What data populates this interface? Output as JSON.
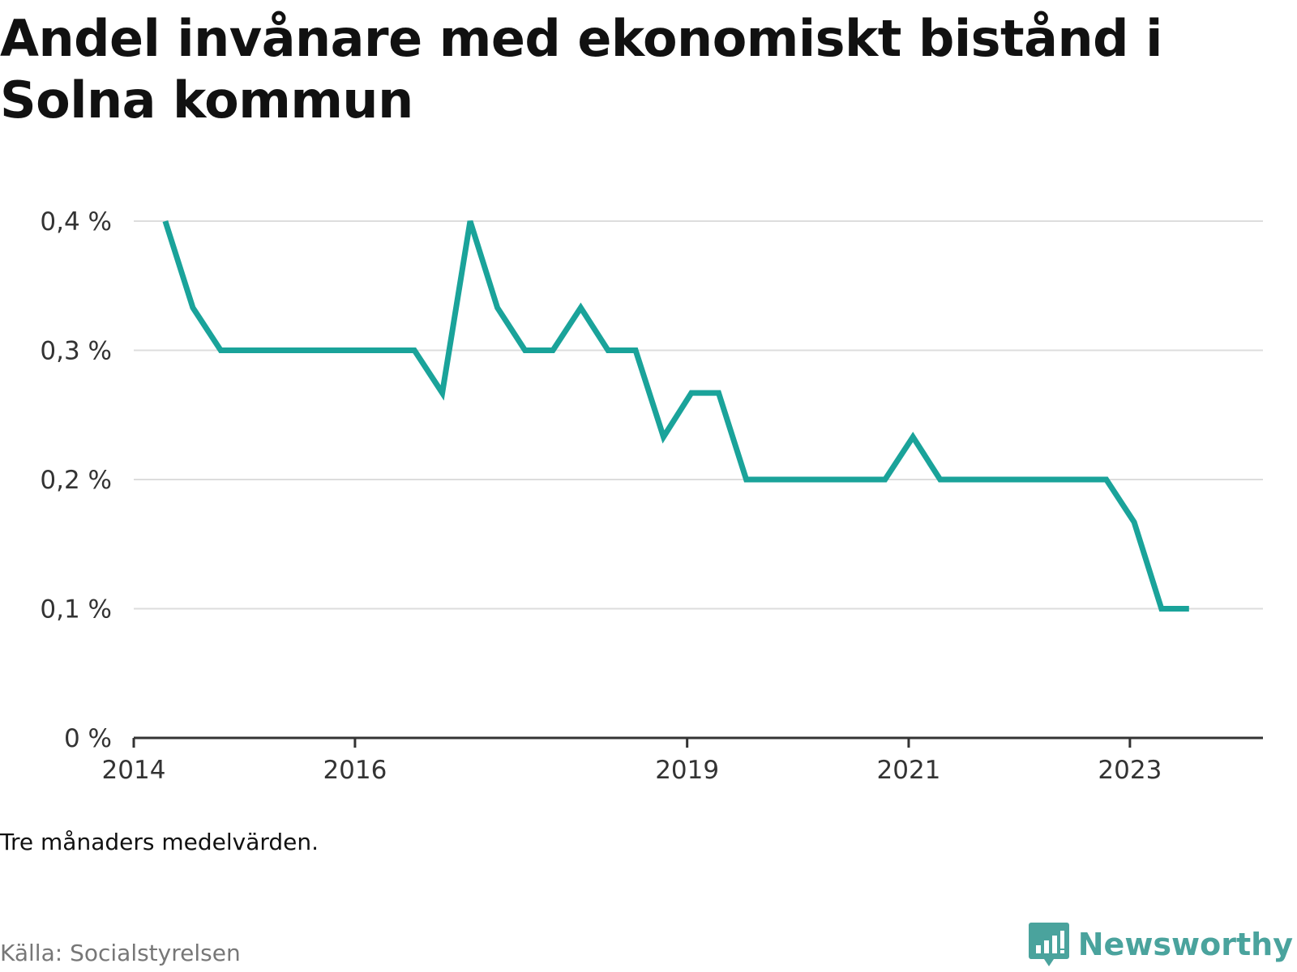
{
  "title": "Andel invånare med ekonomiskt bistånd i Solna kommun",
  "note": "Tre månaders medelvärden.",
  "source": "Källa: Socialstyrelsen",
  "brand": "Newsworthy",
  "colors": {
    "line": "#1aa39a",
    "grid": "#dddddd",
    "axis": "#333333",
    "brand": "#4aa39d"
  },
  "chart_data": {
    "type": "line",
    "title": "Andel invånare med ekonomiskt bistånd i Solna kommun",
    "xlabel": "",
    "ylabel": "",
    "ylim": [
      0,
      0.4
    ],
    "yticks": [
      {
        "value": 0,
        "label": "0 %"
      },
      {
        "value": 0.1,
        "label": "0,1 %"
      },
      {
        "value": 0.2,
        "label": "0,2 %"
      },
      {
        "value": 0.3,
        "label": "0,3 %"
      },
      {
        "value": 0.4,
        "label": "0,4 %"
      }
    ],
    "xlim": [
      "2014-01-01",
      "2024-03-15"
    ],
    "xticks": [
      {
        "value": "2014-01-01",
        "label": "2014"
      },
      {
        "value": "2016-01-01",
        "label": "2016"
      },
      {
        "value": "2019-01-01",
        "label": "2019"
      },
      {
        "value": "2021-01-01",
        "label": "2021"
      },
      {
        "value": "2023-01-01",
        "label": "2023"
      }
    ],
    "grid": true,
    "series": [
      {
        "values": [
          [
            "2014-04-15",
            0.4
          ],
          [
            "2014-07-15",
            0.333
          ],
          [
            "2014-10-15",
            0.3
          ],
          [
            "2015-01-15",
            0.3
          ],
          [
            "2015-04-15",
            0.3
          ],
          [
            "2015-07-15",
            0.3
          ],
          [
            "2015-10-15",
            0.3
          ],
          [
            "2016-01-15",
            0.3
          ],
          [
            "2016-04-15",
            0.3
          ],
          [
            "2016-07-15",
            0.3
          ],
          [
            "2016-10-15",
            0.267
          ],
          [
            "2017-01-15",
            0.4
          ],
          [
            "2017-04-15",
            0.333
          ],
          [
            "2017-07-15",
            0.3
          ],
          [
            "2017-10-15",
            0.3
          ],
          [
            "2018-01-15",
            0.333
          ],
          [
            "2018-04-15",
            0.3
          ],
          [
            "2018-07-15",
            0.3
          ],
          [
            "2018-10-15",
            0.233
          ],
          [
            "2019-01-15",
            0.267
          ],
          [
            "2019-04-15",
            0.267
          ],
          [
            "2019-07-15",
            0.2
          ],
          [
            "2019-10-15",
            0.2
          ],
          [
            "2020-01-15",
            0.2
          ],
          [
            "2020-04-15",
            0.2
          ],
          [
            "2020-07-15",
            0.2
          ],
          [
            "2020-10-15",
            0.2
          ],
          [
            "2021-01-15",
            0.233
          ],
          [
            "2021-04-15",
            0.2
          ],
          [
            "2021-07-15",
            0.2
          ],
          [
            "2021-10-15",
            0.2
          ],
          [
            "2022-01-15",
            0.2
          ],
          [
            "2022-04-15",
            0.2
          ],
          [
            "2022-07-15",
            0.2
          ],
          [
            "2022-10-15",
            0.2
          ],
          [
            "2023-01-15",
            0.167
          ],
          [
            "2023-04-15",
            0.1
          ],
          [
            "2023-07-15",
            0.1
          ]
        ]
      }
    ]
  }
}
